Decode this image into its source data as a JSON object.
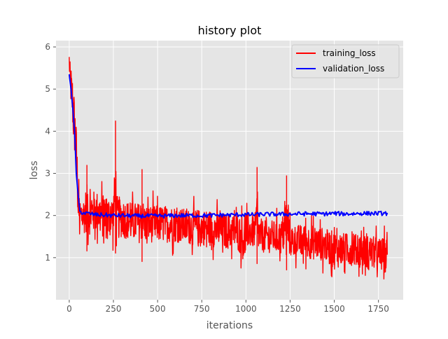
{
  "chart_data": {
    "type": "line",
    "title": "history plot",
    "xlabel": "iterations",
    "ylabel": "loss",
    "xlim": [
      -75,
      1890
    ],
    "ylim": [
      0.0,
      6.15
    ],
    "x_ticks": [
      0,
      250,
      500,
      750,
      1000,
      1250,
      1500,
      1750
    ],
    "y_ticks": [
      1,
      2,
      3,
      4,
      5,
      6
    ],
    "grid": true,
    "legend_position": "top-right",
    "series": [
      {
        "name": "training_loss",
        "color": "#ff0000",
        "x": [
          0,
          3,
          6,
          9,
          12,
          15,
          18,
          21,
          24,
          27,
          30,
          33,
          36,
          39,
          42,
          45,
          48,
          51,
          54,
          57,
          60,
          80,
          100,
          120,
          150,
          200,
          250,
          262,
          270,
          300,
          350,
          400,
          412,
          420,
          450,
          500,
          550,
          600,
          650,
          700,
          750,
          800,
          850,
          900,
          950,
          995,
          1000,
          1050,
          1063,
          1070,
          1100,
          1150,
          1200,
          1230,
          1250,
          1300,
          1350,
          1400,
          1450,
          1500,
          1550,
          1600,
          1650,
          1700,
          1750,
          1800
        ],
        "min": [
          5.5,
          5.0,
          4.6,
          4.6,
          4.4,
          4.2,
          4.1,
          3.8,
          3.6,
          3.5,
          3.4,
          3.2,
          3.0,
          2.9,
          2.7,
          2.4,
          2.0,
          1.5,
          1.3,
          1.2,
          1.2,
          1.2,
          1.15,
          1.1,
          1.2,
          1.0,
          1.1,
          1.1,
          1.0,
          1.1,
          1.0,
          0.95,
          0.9,
          0.95,
          1.0,
          1.0,
          1.0,
          1.0,
          1.0,
          0.95,
          0.95,
          0.9,
          0.9,
          0.85,
          0.85,
          0.45,
          0.9,
          0.9,
          0.85,
          0.85,
          0.8,
          0.8,
          0.75,
          0.7,
          0.7,
          0.7,
          0.65,
          0.6,
          0.6,
          0.35,
          0.5,
          0.5,
          0.45,
          0.45,
          0.35,
          0.3
        ],
        "max": [
          5.9,
          5.7,
          5.6,
          5.6,
          5.5,
          5.4,
          5.4,
          5.3,
          5.2,
          5.0,
          4.8,
          4.7,
          4.5,
          4.2,
          4.0,
          3.6,
          3.3,
          3.0,
          2.9,
          2.8,
          2.8,
          2.8,
          3.2,
          3.0,
          3.0,
          2.9,
          2.9,
          4.25,
          2.9,
          2.8,
          2.7,
          2.7,
          3.1,
          2.7,
          2.6,
          2.6,
          2.6,
          2.6,
          2.5,
          2.5,
          2.5,
          2.5,
          2.4,
          2.4,
          2.4,
          2.3,
          2.4,
          2.3,
          3.15,
          2.3,
          2.2,
          2.2,
          2.2,
          2.95,
          2.1,
          2.1,
          2.1,
          2.1,
          2.0,
          2.0,
          1.9,
          1.9,
          1.85,
          1.85,
          1.8,
          1.8
        ]
      },
      {
        "name": "validation_loss",
        "color": "#0000ff",
        "x": [
          0,
          10,
          20,
          30,
          40,
          50,
          60,
          80,
          100,
          150,
          200,
          250,
          300,
          350,
          400,
          450,
          500,
          550,
          600,
          650,
          700,
          750,
          800,
          850,
          900,
          950,
          1000,
          1050,
          1100,
          1150,
          1200,
          1250,
          1300,
          1350,
          1400,
          1450,
          1500,
          1550,
          1600,
          1650,
          1700,
          1750,
          1800
        ],
        "y": [
          5.35,
          5.0,
          4.55,
          4.0,
          3.0,
          2.5,
          2.1,
          2.06,
          2.05,
          2.02,
          2.01,
          2.0,
          2.0,
          1.99,
          1.99,
          1.99,
          1.99,
          1.99,
          2.0,
          2.0,
          2.0,
          2.0,
          2.0,
          2.01,
          2.01,
          2.02,
          2.02,
          2.02,
          2.03,
          2.03,
          2.03,
          2.03,
          2.04,
          2.04,
          2.04,
          2.04,
          2.05,
          2.04,
          2.04,
          2.05,
          2.05,
          2.05,
          2.05
        ],
        "noise": 0.05
      }
    ]
  }
}
